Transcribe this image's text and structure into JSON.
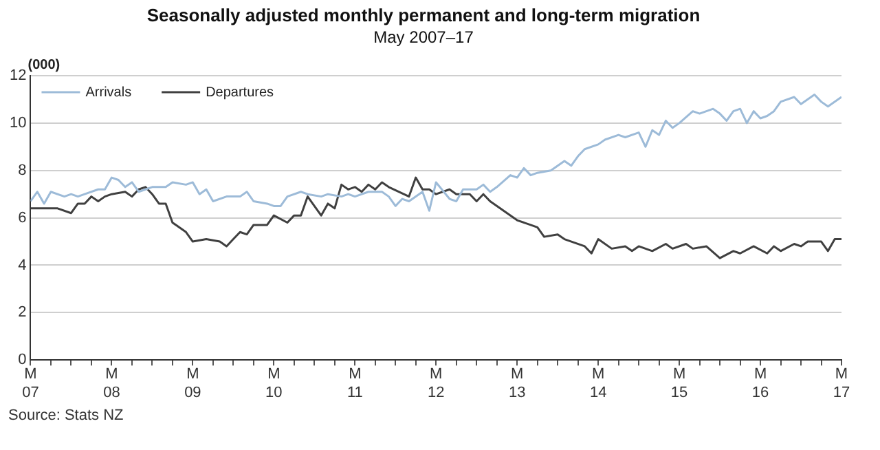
{
  "chart_data": {
    "type": "line",
    "title": "Seasonally adjusted monthly permanent and long-term migration",
    "subtitle": "May 2007–17",
    "ylabel": "(000)",
    "annotations": [
      "Source: Stats NZ"
    ],
    "xlim": [
      "2007-05",
      "2017-05"
    ],
    "xticks": [
      {
        "value": "2007-05",
        "label": "M 07"
      },
      {
        "value": "2007-08",
        "label": null
      },
      {
        "value": "2007-11",
        "label": null
      },
      {
        "value": "2008-02",
        "label": null
      },
      {
        "value": "2008-05",
        "label": "M 08"
      },
      {
        "value": "2008-08",
        "label": null
      },
      {
        "value": "2008-11",
        "label": null
      },
      {
        "value": "2009-02",
        "label": null
      },
      {
        "value": "2009-05",
        "label": "M 09"
      },
      {
        "value": "2009-08",
        "label": null
      },
      {
        "value": "2009-11",
        "label": null
      },
      {
        "value": "2010-02",
        "label": null
      },
      {
        "value": "2010-05",
        "label": "M 10"
      },
      {
        "value": "2010-08",
        "label": null
      },
      {
        "value": "2010-11",
        "label": null
      },
      {
        "value": "2011-02",
        "label": null
      },
      {
        "value": "2011-05",
        "label": "M 11"
      },
      {
        "value": "2011-08",
        "label": null
      },
      {
        "value": "2011-11",
        "label": null
      },
      {
        "value": "2012-02",
        "label": null
      },
      {
        "value": "2012-05",
        "label": "M 12"
      },
      {
        "value": "2012-08",
        "label": null
      },
      {
        "value": "2012-11",
        "label": null
      },
      {
        "value": "2013-02",
        "label": null
      },
      {
        "value": "2013-05",
        "label": "M 13"
      },
      {
        "value": "2013-08",
        "label": null
      },
      {
        "value": "2013-11",
        "label": null
      },
      {
        "value": "2014-02",
        "label": null
      },
      {
        "value": "2014-05",
        "label": "M 14"
      },
      {
        "value": "2014-08",
        "label": null
      },
      {
        "value": "2014-11",
        "label": null
      },
      {
        "value": "2015-02",
        "label": null
      },
      {
        "value": "2015-05",
        "label": "M 15"
      },
      {
        "value": "2015-08",
        "label": null
      },
      {
        "value": "2015-11",
        "label": null
      },
      {
        "value": "2016-02",
        "label": null
      },
      {
        "value": "2016-05",
        "label": "M 16"
      },
      {
        "value": "2016-08",
        "label": null
      },
      {
        "value": "2016-11",
        "label": null
      },
      {
        "value": "2017-02",
        "label": null
      },
      {
        "value": "2017-05",
        "label": "M 17"
      }
    ],
    "ylim": [
      0,
      12
    ],
    "yticks": [
      0,
      2,
      4,
      6,
      8,
      10,
      12
    ],
    "grid": "y",
    "legend": "top left",
    "marker": "none",
    "line_style": "solid",
    "series": [
      {
        "name": "Arrivals",
        "color": "#9dbbd8",
        "x": [
          "2007-05",
          "2007-06",
          "2007-07",
          "2007-08",
          "2007-10",
          "2007-11",
          "2007-12",
          "2008-01",
          "2008-03",
          "2008-04",
          "2008-05",
          "2008-06",
          "2008-07",
          "2008-08",
          "2008-09",
          "2008-10",
          "2008-11",
          "2009-01",
          "2009-02",
          "2009-04",
          "2009-05",
          "2009-06",
          "2009-07",
          "2009-08",
          "2009-10",
          "2009-12",
          "2010-01",
          "2010-02",
          "2010-04",
          "2010-05",
          "2010-06",
          "2010-07",
          "2010-09",
          "2010-10",
          "2010-12",
          "2011-01",
          "2011-03",
          "2011-04",
          "2011-05",
          "2011-07",
          "2011-09",
          "2011-10",
          "2011-11",
          "2011-12",
          "2012-01",
          "2012-03",
          "2012-04",
          "2012-05",
          "2012-07",
          "2012-08",
          "2012-09",
          "2012-11",
          "2012-12",
          "2013-01",
          "2013-02",
          "2013-04",
          "2013-05",
          "2013-06",
          "2013-07",
          "2013-08",
          "2013-10",
          "2013-12",
          "2014-01",
          "2014-02",
          "2014-03",
          "2014-05",
          "2014-06",
          "2014-08",
          "2014-09",
          "2014-11",
          "2014-12",
          "2015-01",
          "2015-02",
          "2015-03",
          "2015-04",
          "2015-05",
          "2015-07",
          "2015-08",
          "2015-10",
          "2015-11",
          "2015-12",
          "2016-01",
          "2016-02",
          "2016-03",
          "2016-04",
          "2016-05",
          "2016-06",
          "2016-07",
          "2016-08",
          "2016-10",
          "2016-11",
          "2017-01",
          "2017-02",
          "2017-03",
          "2017-05"
        ],
        "values": [
          6.7,
          7.1,
          6.6,
          7.1,
          6.9,
          7.0,
          6.9,
          7.0,
          7.2,
          7.2,
          7.7,
          7.6,
          7.3,
          7.5,
          7.1,
          7.2,
          7.3,
          7.3,
          7.5,
          7.4,
          7.5,
          7.0,
          7.2,
          6.7,
          6.9,
          6.9,
          7.1,
          6.7,
          6.6,
          6.5,
          6.5,
          6.9,
          7.1,
          7.0,
          6.9,
          7.0,
          6.9,
          7.0,
          6.9,
          7.1,
          7.1,
          6.9,
          6.5,
          6.8,
          6.7,
          7.1,
          6.3,
          7.5,
          6.8,
          6.7,
          7.2,
          7.2,
          7.4,
          7.1,
          7.3,
          7.8,
          7.7,
          8.1,
          7.8,
          7.9,
          8.0,
          8.4,
          8.2,
          8.6,
          8.9,
          9.1,
          9.3,
          9.5,
          9.4,
          9.6,
          9.0,
          9.7,
          9.5,
          10.1,
          9.8,
          10.0,
          10.5,
          10.4,
          10.6,
          10.4,
          10.1,
          10.5,
          10.6,
          10.0,
          10.5,
          10.2,
          10.3,
          10.5,
          10.9,
          11.1,
          10.8,
          11.2,
          10.9,
          10.7,
          11.1
        ]
      },
      {
        "name": "Departures",
        "color": "#404040",
        "x": [
          "2007-05",
          "2007-08",
          "2007-09",
          "2007-11",
          "2007-12",
          "2008-01",
          "2008-02",
          "2008-03",
          "2008-04",
          "2008-05",
          "2008-07",
          "2008-08",
          "2008-09",
          "2008-10",
          "2008-11",
          "2008-12",
          "2009-01",
          "2009-02",
          "2009-04",
          "2009-05",
          "2009-07",
          "2009-09",
          "2009-10",
          "2009-11",
          "2009-12",
          "2010-01",
          "2010-02",
          "2010-04",
          "2010-05",
          "2010-07",
          "2010-08",
          "2010-09",
          "2010-10",
          "2010-11",
          "2010-12",
          "2011-01",
          "2011-02",
          "2011-03",
          "2011-04",
          "2011-05",
          "2011-06",
          "2011-07",
          "2011-08",
          "2011-09",
          "2011-10",
          "2012-01",
          "2012-02",
          "2012-03",
          "2012-04",
          "2012-05",
          "2012-07",
          "2012-08",
          "2012-10",
          "2012-11",
          "2012-12",
          "2013-01",
          "2013-03",
          "2013-05",
          "2013-07",
          "2013-08",
          "2013-09",
          "2013-11",
          "2013-12",
          "2014-03",
          "2014-04",
          "2014-05",
          "2014-07",
          "2014-09",
          "2014-10",
          "2014-11",
          "2015-01",
          "2015-03",
          "2015-04",
          "2015-06",
          "2015-07",
          "2015-09",
          "2015-11",
          "2016-01",
          "2016-02",
          "2016-04",
          "2016-06",
          "2016-07",
          "2016-08",
          "2016-10",
          "2016-11",
          "2016-12",
          "2017-02",
          "2017-03",
          "2017-04",
          "2017-05"
        ],
        "values": [
          6.4,
          6.4,
          6.4,
          6.2,
          6.6,
          6.6,
          6.9,
          6.7,
          6.9,
          7.0,
          7.1,
          6.9,
          7.2,
          7.3,
          7.0,
          6.6,
          6.6,
          5.8,
          5.4,
          5.0,
          5.1,
          5.0,
          4.8,
          5.1,
          5.4,
          5.3,
          5.7,
          5.7,
          6.1,
          5.8,
          6.1,
          6.1,
          6.9,
          6.5,
          6.1,
          6.6,
          6.4,
          7.4,
          7.2,
          7.3,
          7.1,
          7.4,
          7.2,
          7.5,
          7.3,
          6.9,
          7.7,
          7.2,
          7.2,
          7.0,
          7.2,
          7.0,
          7.0,
          6.7,
          7.0,
          6.7,
          6.3,
          5.9,
          5.7,
          5.6,
          5.2,
          5.3,
          5.1,
          4.8,
          4.5,
          5.1,
          4.7,
          4.8,
          4.6,
          4.8,
          4.6,
          4.9,
          4.7,
          4.9,
          4.7,
          4.8,
          4.3,
          4.6,
          4.5,
          4.8,
          4.5,
          4.8,
          4.6,
          4.9,
          4.8,
          5.0,
          5.0,
          4.6,
          5.1,
          5.1
        ]
      }
    ]
  }
}
